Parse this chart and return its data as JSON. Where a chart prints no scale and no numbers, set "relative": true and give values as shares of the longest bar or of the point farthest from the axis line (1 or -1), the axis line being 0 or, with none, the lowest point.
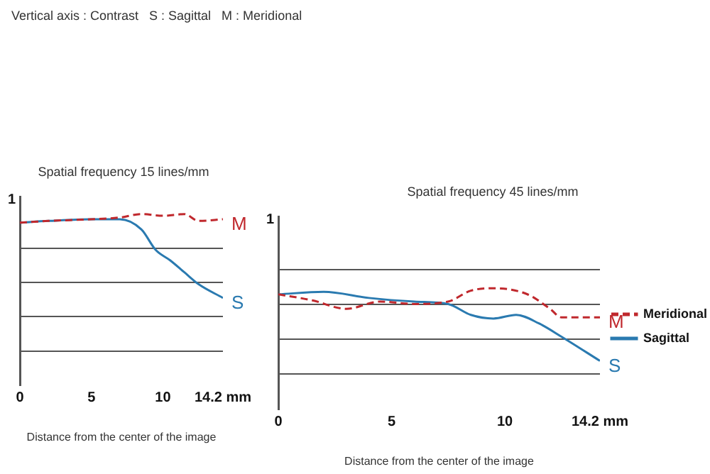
{
  "chart_data": [
    {
      "type": "line",
      "subtitle": "Vertical axis : Contrast   S : Sagittal   M : Meridional",
      "title": "Spatial frequency 15 lines/mm",
      "xlabel": "Distance from the center of the image",
      "annotations": [
        "1",
        "M",
        "S"
      ],
      "relative": true,
      "xlim": [
        0,
        14.2
      ],
      "xticks": [
        0,
        5,
        10,
        {
          "value": 14.2,
          "label": "14.2 mm"
        }
      ],
      "grid": "y",
      "legend": false,
      "series": [
        {
          "color": "#c0282d",
          "line_style": "dashed",
          "x": [
            0,
            2,
            5,
            7,
            8.5,
            10,
            11.5,
            12.5,
            14.2
          ],
          "values": [
            0.95,
            0.96,
            0.97,
            0.98,
            1,
            0.99,
            1,
            0.96,
            0.97
          ]
        },
        {
          "color": "#2a7ab0",
          "line_style": "solid",
          "x": [
            0,
            2,
            5,
            7,
            8.5,
            9.5,
            10.5,
            11.5,
            12.5,
            14.2
          ],
          "values": [
            0.95,
            0.96,
            0.97,
            0.97,
            0.91,
            0.79,
            0.73,
            0.66,
            0.59,
            0.51
          ]
        }
      ]
    },
    {
      "type": "line",
      "title": "Spatial frequency 45 lines/mm",
      "xlabel": "Distance from the center of the image",
      "annotations": [
        "1",
        "M",
        "S"
      ],
      "relative": true,
      "xlim": [
        0,
        14.2
      ],
      "xticks": [
        0,
        5,
        10,
        {
          "value": 14.2,
          "label": "14.2 mm"
        }
      ],
      "grid": "y",
      "legend": "right",
      "series": [
        {
          "name": "Meridional",
          "color": "#c0282d",
          "line_style": "dashed",
          "x": [
            0,
            1.5,
            3,
            4.5,
            6,
            7.5,
            8.5,
            9.5,
            11,
            12,
            12.5,
            14.2
          ],
          "values": [
            0.95,
            0.9,
            0.83,
            0.89,
            0.87,
            0.89,
            0.98,
            1,
            0.95,
            0.83,
            0.76,
            0.76
          ]
        },
        {
          "name": "Sagittal",
          "color": "#2a7ab0",
          "line_style": "solid",
          "x": [
            0,
            2,
            4,
            6,
            7.5,
            8.5,
            9.5,
            10.5,
            11.5,
            12.5,
            14.2
          ],
          "values": [
            0.95,
            0.97,
            0.92,
            0.89,
            0.87,
            0.78,
            0.75,
            0.78,
            0.71,
            0.6,
            0.4
          ]
        }
      ]
    }
  ]
}
